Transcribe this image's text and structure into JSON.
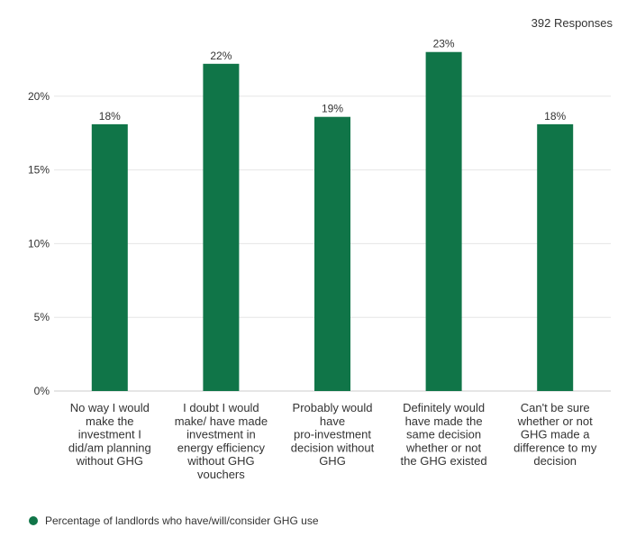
{
  "responses_label": "392 Responses",
  "legend": {
    "label": "Percentage of landlords who have/will/consider GHG use"
  },
  "colors": {
    "bar": "#107548",
    "grid": "#e6e6e6",
    "axis": "#cccccc",
    "text": "#333333"
  },
  "chart_data": {
    "type": "bar",
    "title": "",
    "xlabel": "",
    "ylabel": "",
    "ylim": [
      0,
      0.25
    ],
    "yticks": [
      "0%",
      "5%",
      "10%",
      "15%",
      "20%"
    ],
    "categories": [
      [
        "No way I would",
        "make the",
        "investment I",
        "did/am planning",
        "without GHG"
      ],
      [
        "I doubt I would",
        "make/ have made",
        "investment in",
        "energy efficiency",
        "without GHG",
        "vouchers"
      ],
      [
        "Probably would",
        "have",
        "pro-investment",
        "decision without",
        "GHG"
      ],
      [
        "Definitely would",
        "have made the",
        "same decision",
        "whether or not",
        "the GHG existed"
      ],
      [
        "Can't be sure",
        "whether or not",
        "GHG made a",
        "difference to my",
        "decision"
      ]
    ],
    "series": [
      {
        "name": "Percentage of landlords who have/will/consider GHG use",
        "values": [
          0.181,
          0.222,
          0.186,
          0.23,
          0.181
        ],
        "labels": [
          "18%",
          "22%",
          "19%",
          "23%",
          "18%"
        ]
      }
    ]
  }
}
